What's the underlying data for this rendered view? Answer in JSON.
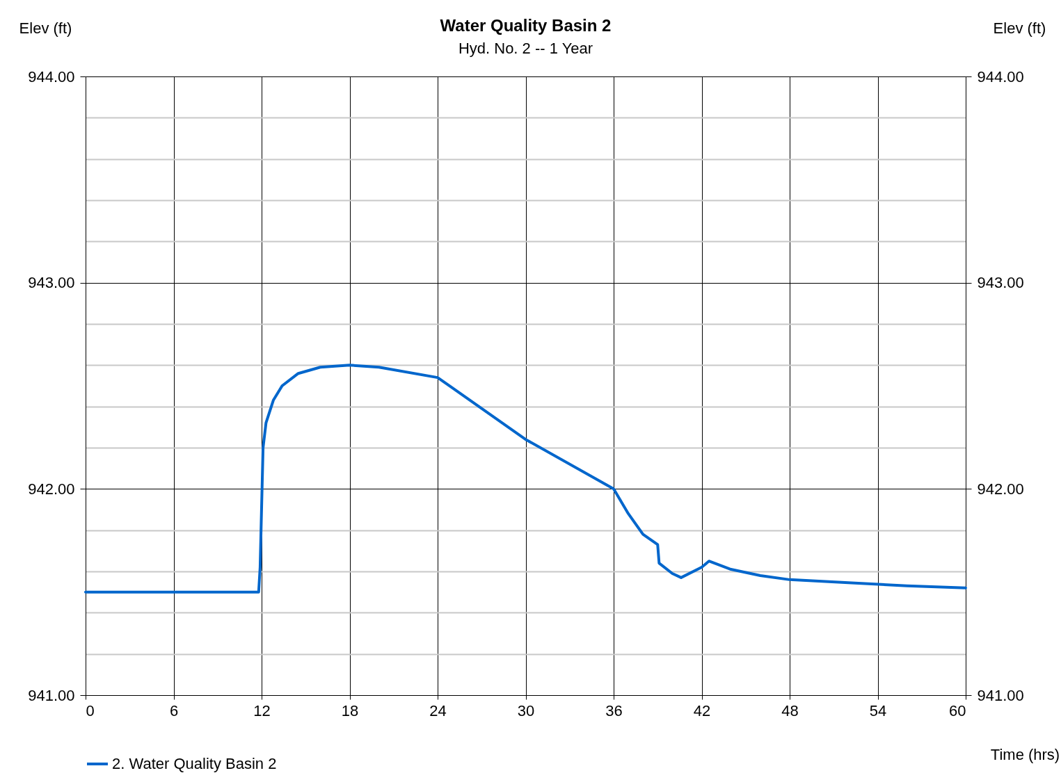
{
  "chart_data": {
    "type": "line",
    "title": "Water Quality Basin 2",
    "subtitle": "Hyd. No. 2 -- 1 Year",
    "xlabel": "Time (hrs)",
    "ylabel": "Elev (ft)",
    "y2label": "Elev (ft)",
    "x": [
      0,
      11.8,
      11.9,
      12.1,
      12.3,
      12.8,
      13.4,
      14.5,
      16,
      18,
      20,
      24,
      25,
      30,
      36,
      37,
      38,
      39,
      39.1,
      40,
      40.6,
      42,
      42.5,
      44,
      46,
      48,
      52,
      56,
      60
    ],
    "series": [
      {
        "name": "2. Water Quality Basin 2",
        "color": "#0066cc",
        "values": [
          941.5,
          941.5,
          941.62,
          942.2,
          942.32,
          942.43,
          942.5,
          942.56,
          942.59,
          942.6,
          942.59,
          942.54,
          942.49,
          942.24,
          942.0,
          941.88,
          941.78,
          941.73,
          941.64,
          941.59,
          941.57,
          941.62,
          941.65,
          941.61,
          941.58,
          941.56,
          941.545,
          941.53,
          941.52
        ]
      }
    ],
    "xlim": [
      0,
      60
    ],
    "xticks": [
      0,
      6,
      12,
      18,
      24,
      30,
      36,
      42,
      48,
      54,
      60
    ],
    "ylim": [
      941,
      944
    ],
    "yticks": [
      {
        "value": 941,
        "label": "941.00"
      },
      {
        "value": 941.2,
        "label": null
      },
      {
        "value": 941.4,
        "label": null
      },
      {
        "value": 941.6,
        "label": null
      },
      {
        "value": 941.8,
        "label": null
      },
      {
        "value": 942,
        "label": "942.00"
      },
      {
        "value": 942.2,
        "label": null
      },
      {
        "value": 942.4,
        "label": null
      },
      {
        "value": 942.6,
        "label": null
      },
      {
        "value": 942.8,
        "label": null
      },
      {
        "value": 943,
        "label": "943.00"
      },
      {
        "value": 943.2,
        "label": null
      },
      {
        "value": 943.4,
        "label": null
      },
      {
        "value": 943.6,
        "label": null
      },
      {
        "value": 943.8,
        "label": null
      },
      {
        "value": 944,
        "label": "944.00"
      }
    ],
    "y2lim": [
      941,
      944
    ],
    "y2ticks": [
      {
        "value": 941,
        "label": "941.00"
      },
      {
        "value": 942,
        "label": "942.00"
      },
      {
        "value": 943,
        "label": "943.00"
      },
      {
        "value": 944,
        "label": "944.00"
      }
    ],
    "grid": true,
    "legend": "bottom left",
    "line_style": "solid"
  }
}
